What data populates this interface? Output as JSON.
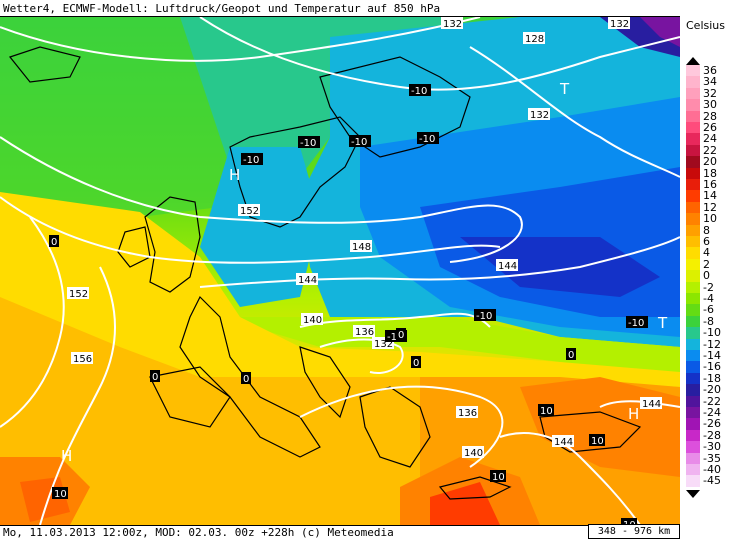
{
  "header": {
    "title": "Wetter4, ECMWF-Modell: Luftdruck/Geopot und Temperatur auf 850 hPa"
  },
  "footer": {
    "run_info": "Mo, 11.03.2013 12:00z, MOD: 02.03. 00z +228h (c) Meteomedia",
    "scale": "348 - 976 km"
  },
  "legend": {
    "title": "Celsius",
    "items": [
      {
        "label": "36",
        "color": "#ffc8dc"
      },
      {
        "label": "34",
        "color": "#ffb4cc"
      },
      {
        "label": "32",
        "color": "#ffa0bc"
      },
      {
        "label": "30",
        "color": "#ff8cac"
      },
      {
        "label": "28",
        "color": "#ff6e94"
      },
      {
        "label": "26",
        "color": "#ff4c7c"
      },
      {
        "label": "24",
        "color": "#e8285c"
      },
      {
        "label": "22",
        "color": "#c81440"
      },
      {
        "label": "20",
        "color": "#a00a1e"
      },
      {
        "label": "18",
        "color": "#c80a0a"
      },
      {
        "label": "16",
        "color": "#e81e0a"
      },
      {
        "label": "14",
        "color": "#ff3c00"
      },
      {
        "label": "12",
        "color": "#ff6400"
      },
      {
        "label": "10",
        "color": "#ff8200"
      },
      {
        "label": "8",
        "color": "#ffa000"
      },
      {
        "label": "6",
        "color": "#ffbe00"
      },
      {
        "label": "4",
        "color": "#ffdc00"
      },
      {
        "label": "2",
        "color": "#f5f000"
      },
      {
        "label": "0",
        "color": "#dcf000"
      },
      {
        "label": "-2",
        "color": "#b4f000"
      },
      {
        "label": "-4",
        "color": "#8ce600"
      },
      {
        "label": "-6",
        "color": "#64dc14"
      },
      {
        "label": "-8",
        "color": "#3cd23c"
      },
      {
        "label": "-10",
        "color": "#28c88c"
      },
      {
        "label": "-12",
        "color": "#14b4dc"
      },
      {
        "label": "-14",
        "color": "#0a8cf0"
      },
      {
        "label": "-16",
        "color": "#0a5ae6"
      },
      {
        "label": "-18",
        "color": "#1432c8"
      },
      {
        "label": "-20",
        "color": "#281ea0"
      },
      {
        "label": "-22",
        "color": "#50149c"
      },
      {
        "label": "-24",
        "color": "#7814a0"
      },
      {
        "label": "-26",
        "color": "#a014b4"
      },
      {
        "label": "-28",
        "color": "#c828c8"
      },
      {
        "label": "-30",
        "color": "#dc50dc"
      },
      {
        "label": "-35",
        "color": "#e88ce8"
      },
      {
        "label": "-40",
        "color": "#f0b4f0"
      },
      {
        "label": "-45",
        "color": "#f8dcf8"
      }
    ]
  },
  "map": {
    "pressure_centers": [
      {
        "label": "T"
      },
      {
        "label": "H"
      },
      {
        "label": "H"
      },
      {
        "label": "H"
      },
      {
        "label": "T"
      }
    ],
    "isobar_labels": [
      "132",
      "132",
      "128",
      "132",
      "152",
      "148",
      "144",
      "144",
      "152",
      "156",
      "140",
      "136",
      "132",
      "136",
      "140",
      "144",
      "144"
    ],
    "temp_labels": [
      "-10",
      "-10",
      "-10",
      "-10",
      "-10",
      "-10",
      "-10",
      "-10",
      "0",
      "0",
      "0",
      "0",
      "0",
      "0",
      "10",
      "10",
      "10",
      "10",
      "10"
    ]
  }
}
